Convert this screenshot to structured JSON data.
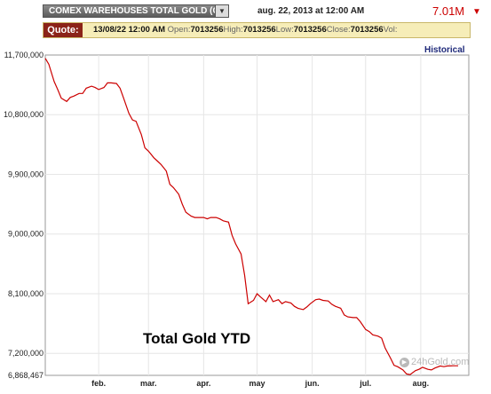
{
  "header": {
    "symbol_title": "COMEX WAREHOUSES TOTAL GOLD (C",
    "datetime": "aug. 22, 2013 at 12:00 AM",
    "last_value": "7.01M",
    "last_value_color": "#cc0000"
  },
  "quote": {
    "label": "Quote:",
    "date": "13/08/22 12:00 AM",
    "open_label": "Open:",
    "open": "7013256",
    "high_label": "High:",
    "high": "7013256",
    "low_label": "Low:",
    "low": "7013256",
    "close_label": "Close:",
    "close": "7013256",
    "vol_label": "Vol:"
  },
  "historical_link": "Historical",
  "watermark": "24hGold.com",
  "chart_data": {
    "type": "line",
    "title": "",
    "annotation": "Total Gold YTD",
    "series_color": "#cc0000",
    "grid": true,
    "ylim": [
      6868467,
      11700000
    ],
    "yticks": [
      {
        "value": 11700000,
        "label": "11,700,000"
      },
      {
        "value": 10800000,
        "label": "10,800,000"
      },
      {
        "value": 9900000,
        "label": "9,900,000"
      },
      {
        "value": 9000000,
        "label": "9,000,000"
      },
      {
        "value": 8100000,
        "label": "8,100,000"
      },
      {
        "value": 7200000,
        "label": "7,200,000"
      },
      {
        "value": 6868467,
        "label": "6,868,467"
      }
    ],
    "xticks": [
      {
        "label": "feb.",
        "date": "2013-02-01"
      },
      {
        "label": "mar.",
        "date": "2013-03-01"
      },
      {
        "label": "apr.",
        "date": "2013-04-01"
      },
      {
        "label": "may",
        "date": "2013-05-01"
      },
      {
        "label": "jun.",
        "date": "2013-06-01"
      },
      {
        "label": "jul.",
        "date": "2013-07-01"
      },
      {
        "label": "aug.",
        "date": "2013-08-01"
      }
    ],
    "x_range": [
      "2013-01-02",
      "2013-08-28"
    ],
    "points": [
      [
        "2013-01-02",
        11650000
      ],
      [
        "2013-01-04",
        11560000
      ],
      [
        "2013-01-07",
        11300000
      ],
      [
        "2013-01-09",
        11180000
      ],
      [
        "2013-01-11",
        11050000
      ],
      [
        "2013-01-14",
        11000000
      ],
      [
        "2013-01-16",
        11060000
      ],
      [
        "2013-01-18",
        11080000
      ],
      [
        "2013-01-21",
        11120000
      ],
      [
        "2013-01-23",
        11120000
      ],
      [
        "2013-01-25",
        11200000
      ],
      [
        "2013-01-28",
        11230000
      ],
      [
        "2013-01-30",
        11210000
      ],
      [
        "2013-02-01",
        11180000
      ],
      [
        "2013-02-04",
        11210000
      ],
      [
        "2013-02-06",
        11280000
      ],
      [
        "2013-02-08",
        11280000
      ],
      [
        "2013-02-11",
        11270000
      ],
      [
        "2013-02-13",
        11200000
      ],
      [
        "2013-02-15",
        11050000
      ],
      [
        "2013-02-18",
        10820000
      ],
      [
        "2013-02-20",
        10720000
      ],
      [
        "2013-02-22",
        10700000
      ],
      [
        "2013-02-25",
        10500000
      ],
      [
        "2013-02-27",
        10300000
      ],
      [
        "2013-03-01",
        10250000
      ],
      [
        "2013-03-04",
        10150000
      ],
      [
        "2013-03-06",
        10100000
      ],
      [
        "2013-03-08",
        10050000
      ],
      [
        "2013-03-11",
        9950000
      ],
      [
        "2013-03-13",
        9750000
      ],
      [
        "2013-03-15",
        9700000
      ],
      [
        "2013-03-18",
        9600000
      ],
      [
        "2013-03-20",
        9450000
      ],
      [
        "2013-03-22",
        9330000
      ],
      [
        "2013-03-25",
        9270000
      ],
      [
        "2013-03-27",
        9250000
      ],
      [
        "2013-03-29",
        9250000
      ],
      [
        "2013-04-01",
        9250000
      ],
      [
        "2013-04-03",
        9230000
      ],
      [
        "2013-04-05",
        9250000
      ],
      [
        "2013-04-08",
        9250000
      ],
      [
        "2013-04-10",
        9230000
      ],
      [
        "2013-04-12",
        9200000
      ],
      [
        "2013-04-15",
        9180000
      ],
      [
        "2013-04-17",
        8980000
      ],
      [
        "2013-04-19",
        8850000
      ],
      [
        "2013-04-22",
        8700000
      ],
      [
        "2013-04-24",
        8380000
      ],
      [
        "2013-04-26",
        7950000
      ],
      [
        "2013-04-29",
        8000000
      ],
      [
        "2013-05-01",
        8100000
      ],
      [
        "2013-05-03",
        8050000
      ],
      [
        "2013-05-06",
        7980000
      ],
      [
        "2013-05-08",
        8080000
      ],
      [
        "2013-05-10",
        7980000
      ],
      [
        "2013-05-13",
        8010000
      ],
      [
        "2013-05-15",
        7950000
      ],
      [
        "2013-05-17",
        7980000
      ],
      [
        "2013-05-20",
        7960000
      ],
      [
        "2013-05-22",
        7910000
      ],
      [
        "2013-05-24",
        7880000
      ],
      [
        "2013-05-27",
        7860000
      ],
      [
        "2013-05-29",
        7900000
      ],
      [
        "2013-05-31",
        7950000
      ],
      [
        "2013-06-03",
        8010000
      ],
      [
        "2013-06-05",
        8020000
      ],
      [
        "2013-06-07",
        8000000
      ],
      [
        "2013-06-10",
        7990000
      ],
      [
        "2013-06-12",
        7940000
      ],
      [
        "2013-06-14",
        7910000
      ],
      [
        "2013-06-17",
        7880000
      ],
      [
        "2013-06-19",
        7780000
      ],
      [
        "2013-06-21",
        7750000
      ],
      [
        "2013-06-24",
        7740000
      ],
      [
        "2013-06-26",
        7740000
      ],
      [
        "2013-06-28",
        7680000
      ],
      [
        "2013-07-01",
        7560000
      ],
      [
        "2013-07-03",
        7530000
      ],
      [
        "2013-07-05",
        7480000
      ],
      [
        "2013-07-08",
        7460000
      ],
      [
        "2013-07-10",
        7430000
      ],
      [
        "2013-07-12",
        7280000
      ],
      [
        "2013-07-15",
        7130000
      ],
      [
        "2013-07-17",
        7020000
      ],
      [
        "2013-07-19",
        7000000
      ],
      [
        "2013-07-22",
        6950000
      ],
      [
        "2013-07-24",
        6890000
      ],
      [
        "2013-07-26",
        6880000
      ],
      [
        "2013-07-29",
        6940000
      ],
      [
        "2013-07-31",
        6960000
      ],
      [
        "2013-08-02",
        6990000
      ],
      [
        "2013-08-05",
        6960000
      ],
      [
        "2013-08-07",
        6950000
      ],
      [
        "2013-08-09",
        6980000
      ],
      [
        "2013-08-12",
        7010000
      ],
      [
        "2013-08-14",
        7000000
      ],
      [
        "2013-08-16",
        7010000
      ],
      [
        "2013-08-19",
        7013256
      ],
      [
        "2013-08-22",
        7013256
      ]
    ]
  }
}
